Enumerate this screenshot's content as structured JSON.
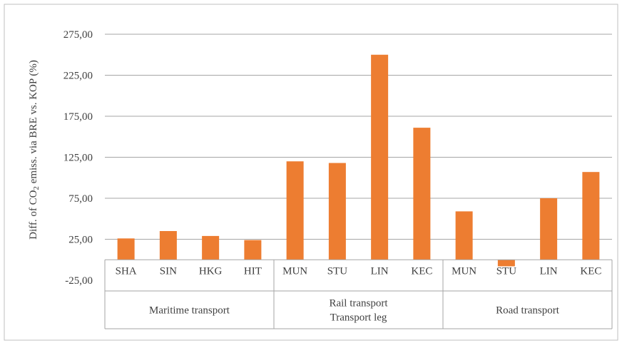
{
  "chart_data": {
    "type": "bar",
    "ylabel_parts": [
      "Diff. of CO",
      "2",
      " emiss. via BRE vs. KOP (%)"
    ],
    "ylim": [
      -25,
      275
    ],
    "y_ticks": [
      "275,00",
      "225,00",
      "175,00",
      "125,00",
      "75,00",
      "25,00",
      "-25,00"
    ],
    "grid": "horizontal",
    "bar_color": "#ED7D31",
    "categories": [
      "SHA",
      "SIN",
      "HKG",
      "HIT",
      "MUN",
      "STU",
      "LIN",
      "KEC",
      "MUN",
      "STU",
      "LIN",
      "KEC"
    ],
    "values": [
      26,
      35,
      29,
      24,
      120,
      118,
      250,
      161,
      59,
      -8,
      75,
      107
    ],
    "groups": [
      {
        "label_lines": [
          "Maritime transport"
        ],
        "start": 0,
        "end": 4
      },
      {
        "label_lines": [
          "Rail transport",
          "Transport leg"
        ],
        "start": 4,
        "end": 8
      },
      {
        "label_lines": [
          "Road transport"
        ],
        "start": 8,
        "end": 12
      }
    ]
  }
}
